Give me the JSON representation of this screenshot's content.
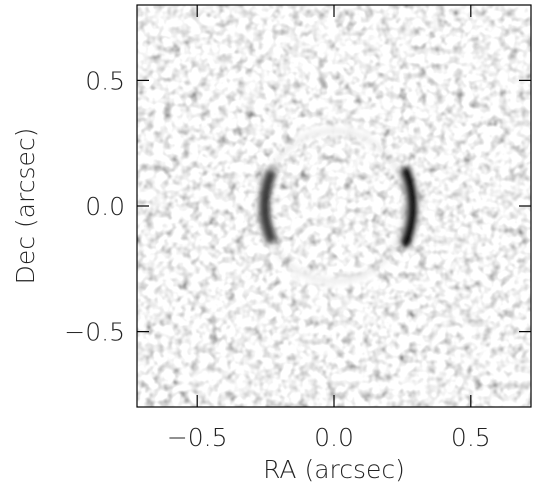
{
  "chart_data": {
    "type": "image",
    "xlabel": "RA (arcsec)",
    "ylabel": "Dec (arcsec)",
    "xlim": [
      -0.72,
      0.72
    ],
    "ylim": [
      -0.8,
      0.8
    ],
    "xticks": [
      {
        "value": -0.5,
        "label": "−0.5"
      },
      {
        "value": 0.0,
        "label": "0.0"
      },
      {
        "value": 0.5,
        "label": "0.5"
      }
    ],
    "yticks": [
      {
        "value": -0.5,
        "label": "−0.5"
      },
      {
        "value": 0.0,
        "label": "0.0"
      },
      {
        "value": 0.5,
        "label": "0.5"
      }
    ]
  }
}
